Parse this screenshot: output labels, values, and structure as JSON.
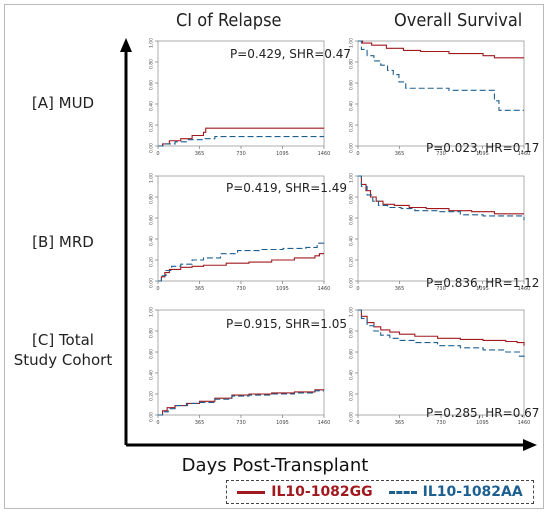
{
  "column_titles": [
    "CI of Relapse",
    "Overall Survival"
  ],
  "row_labels": [
    "[A] MUD",
    "[B] MRD",
    "[C] Total Study Cohort"
  ],
  "x_axis_label": "Days Post-Transplant",
  "legend": [
    {
      "label": "IL10-1082GG",
      "color": "#a0191e",
      "style": "solid"
    },
    {
      "label": "IL10-1082AA",
      "color": "#1d5f91",
      "style": "dashed"
    }
  ],
  "colors": {
    "gg": "#a0191e",
    "aa": "#1d5f91",
    "axis": "#000000"
  },
  "chart_data": [
    {
      "type": "line",
      "row": "[A] MUD",
      "column": "CI of Relapse",
      "stat_text": "P=0.429, SHR=0.47",
      "xlim": [
        0,
        1460
      ],
      "ylim": [
        0,
        1
      ],
      "x_ticks": [
        "0",
        "365",
        "730",
        "1095",
        "1460"
      ],
      "y_ticks": [
        "0.00",
        "0.20",
        "0.40",
        "0.60",
        "0.80",
        "1.00"
      ],
      "series": [
        {
          "name": "IL10-1082GG",
          "points": [
            [
              0,
              0
            ],
            [
              40,
              0.02
            ],
            [
              100,
              0.05
            ],
            [
              200,
              0.07
            ],
            [
              300,
              0.1
            ],
            [
              400,
              0.13
            ],
            [
              420,
              0.17
            ],
            [
              1460,
              0.17
            ]
          ]
        },
        {
          "name": "IL10-1082AA",
          "points": [
            [
              0,
              0
            ],
            [
              60,
              0.02
            ],
            [
              150,
              0.04
            ],
            [
              250,
              0.06
            ],
            [
              400,
              0.07
            ],
            [
              500,
              0.09
            ],
            [
              1460,
              0.09
            ]
          ]
        }
      ]
    },
    {
      "type": "line",
      "row": "[A] MUD",
      "column": "Overall Survival",
      "stat_text": "P=0.023, HR=0.17",
      "xlim": [
        0,
        1460
      ],
      "ylim": [
        0,
        1
      ],
      "x_ticks": [
        "0",
        "365",
        "730",
        "1095",
        "1460"
      ],
      "y_ticks": [
        "0.00",
        "0.20",
        "0.40",
        "0.60",
        "0.80",
        "1.00"
      ],
      "series": [
        {
          "name": "IL10-1082GG",
          "points": [
            [
              0,
              1.0
            ],
            [
              40,
              0.98
            ],
            [
              120,
              0.96
            ],
            [
              250,
              0.93
            ],
            [
              400,
              0.91
            ],
            [
              550,
              0.9
            ],
            [
              800,
              0.88
            ],
            [
              1100,
              0.86
            ],
            [
              1200,
              0.84
            ],
            [
              1460,
              0.84
            ]
          ]
        },
        {
          "name": "IL10-1082AA",
          "points": [
            [
              0,
              1.0
            ],
            [
              30,
              0.92
            ],
            [
              80,
              0.86
            ],
            [
              140,
              0.81
            ],
            [
              200,
              0.77
            ],
            [
              260,
              0.72
            ],
            [
              310,
              0.68
            ],
            [
              360,
              0.61
            ],
            [
              420,
              0.55
            ],
            [
              700,
              0.55
            ],
            [
              800,
              0.53
            ],
            [
              1160,
              0.53
            ],
            [
              1200,
              0.43
            ],
            [
              1240,
              0.34
            ],
            [
              1460,
              0.34
            ]
          ]
        }
      ]
    },
    {
      "type": "line",
      "row": "[B] MRD",
      "column": "CI of Relapse",
      "stat_text": "P=0.419, SHR=1.49",
      "xlim": [
        0,
        1460
      ],
      "ylim": [
        0,
        1
      ],
      "x_ticks": [
        "0",
        "365",
        "730",
        "1095",
        "1460"
      ],
      "y_ticks": [
        "0.00",
        "0.20",
        "0.40",
        "0.60",
        "0.80",
        "1.00"
      ],
      "series": [
        {
          "name": "IL10-1082GG",
          "points": [
            [
              0,
              0
            ],
            [
              30,
              0.04
            ],
            [
              60,
              0.08
            ],
            [
              100,
              0.11
            ],
            [
              200,
              0.13
            ],
            [
              300,
              0.14
            ],
            [
              400,
              0.15
            ],
            [
              600,
              0.17
            ],
            [
              800,
              0.18
            ],
            [
              1000,
              0.2
            ],
            [
              1200,
              0.22
            ],
            [
              1380,
              0.24
            ],
            [
              1420,
              0.26
            ],
            [
              1460,
              0.26
            ]
          ]
        },
        {
          "name": "IL10-1082AA",
          "points": [
            [
              0,
              0
            ],
            [
              30,
              0.05
            ],
            [
              70,
              0.1
            ],
            [
              120,
              0.14
            ],
            [
              200,
              0.16
            ],
            [
              300,
              0.2
            ],
            [
              400,
              0.22
            ],
            [
              550,
              0.26
            ],
            [
              700,
              0.29
            ],
            [
              900,
              0.3
            ],
            [
              1100,
              0.31
            ],
            [
              1300,
              0.32
            ],
            [
              1400,
              0.36
            ],
            [
              1460,
              0.36
            ]
          ]
        }
      ]
    },
    {
      "type": "line",
      "row": "[B] MRD",
      "column": "Overall Survival",
      "stat_text": "P=0.836, HR=1.12",
      "xlim": [
        0,
        1460
      ],
      "ylim": [
        0,
        1
      ],
      "x_ticks": [
        "0",
        "365",
        "730",
        "1095",
        "1460"
      ],
      "y_ticks": [
        "0.00",
        "0.20",
        "0.40",
        "0.60",
        "0.80",
        "1.00"
      ],
      "series": [
        {
          "name": "IL10-1082GG",
          "points": [
            [
              0,
              1.0
            ],
            [
              30,
              0.92
            ],
            [
              70,
              0.86
            ],
            [
              110,
              0.8
            ],
            [
              160,
              0.76
            ],
            [
              220,
              0.73
            ],
            [
              320,
              0.72
            ],
            [
              450,
              0.7
            ],
            [
              600,
              0.69
            ],
            [
              800,
              0.67
            ],
            [
              1000,
              0.66
            ],
            [
              1200,
              0.64
            ],
            [
              1460,
              0.64
            ]
          ]
        },
        {
          "name": "IL10-1082AA",
          "points": [
            [
              0,
              1.0
            ],
            [
              30,
              0.9
            ],
            [
              80,
              0.82
            ],
            [
              130,
              0.76
            ],
            [
              180,
              0.72
            ],
            [
              260,
              0.7
            ],
            [
              380,
              0.69
            ],
            [
              500,
              0.67
            ],
            [
              700,
              0.66
            ],
            [
              900,
              0.63
            ],
            [
              1100,
              0.62
            ],
            [
              1300,
              0.62
            ],
            [
              1440,
              0.62
            ],
            [
              1460,
              0.58
            ]
          ]
        }
      ]
    },
    {
      "type": "line",
      "row": "[C] Total Study Cohort",
      "column": "CI of Relapse",
      "stat_text": "P=0.915, SHR=1.05",
      "xlim": [
        0,
        1460
      ],
      "ylim": [
        0,
        1
      ],
      "x_ticks": [
        "0",
        "365",
        "730",
        "1095",
        "1460"
      ],
      "y_ticks": [
        "0.00",
        "0.20",
        "0.40",
        "0.60",
        "0.80",
        "1.00"
      ],
      "series": [
        {
          "name": "IL10-1082GG",
          "points": [
            [
              0,
              0
            ],
            [
              40,
              0.04
            ],
            [
              80,
              0.07
            ],
            [
              150,
              0.09
            ],
            [
              250,
              0.11
            ],
            [
              365,
              0.13
            ],
            [
              500,
              0.16
            ],
            [
              650,
              0.19
            ],
            [
              800,
              0.2
            ],
            [
              1000,
              0.21
            ],
            [
              1200,
              0.22
            ],
            [
              1380,
              0.24
            ],
            [
              1460,
              0.24
            ]
          ]
        },
        {
          "name": "IL10-1082AA",
          "points": [
            [
              0,
              0
            ],
            [
              40,
              0.03
            ],
            [
              90,
              0.06
            ],
            [
              160,
              0.09
            ],
            [
              260,
              0.11
            ],
            [
              365,
              0.12
            ],
            [
              500,
              0.15
            ],
            [
              650,
              0.18
            ],
            [
              800,
              0.19
            ],
            [
              1000,
              0.2
            ],
            [
              1200,
              0.21
            ],
            [
              1380,
              0.23
            ],
            [
              1460,
              0.23
            ]
          ]
        }
      ]
    },
    {
      "type": "line",
      "row": "[C] Total Study Cohort",
      "column": "Overall Survival",
      "stat_text": "P=0.285, HR=0.67",
      "xlim": [
        0,
        1460
      ],
      "ylim": [
        0,
        1
      ],
      "x_ticks": [
        "0",
        "365",
        "730",
        "1095",
        "1460"
      ],
      "y_ticks": [
        "0.00",
        "0.20",
        "0.40",
        "0.60",
        "0.80",
        "1.00"
      ],
      "series": [
        {
          "name": "IL10-1082GG",
          "points": [
            [
              0,
              1.0
            ],
            [
              30,
              0.94
            ],
            [
              80,
              0.88
            ],
            [
              140,
              0.84
            ],
            [
              200,
              0.81
            ],
            [
              280,
              0.79
            ],
            [
              365,
              0.77
            ],
            [
              500,
              0.75
            ],
            [
              700,
              0.73
            ],
            [
              900,
              0.72
            ],
            [
              1100,
              0.71
            ],
            [
              1300,
              0.7
            ],
            [
              1400,
              0.69
            ],
            [
              1460,
              0.66
            ]
          ]
        },
        {
          "name": "IL10-1082AA",
          "points": [
            [
              0,
              1.0
            ],
            [
              30,
              0.92
            ],
            [
              80,
              0.85
            ],
            [
              140,
              0.8
            ],
            [
              200,
              0.76
            ],
            [
              280,
              0.73
            ],
            [
              365,
              0.71
            ],
            [
              500,
              0.69
            ],
            [
              700,
              0.66
            ],
            [
              900,
              0.64
            ],
            [
              1100,
              0.62
            ],
            [
              1300,
              0.6
            ],
            [
              1420,
              0.56
            ],
            [
              1460,
              0.55
            ]
          ]
        }
      ]
    }
  ]
}
